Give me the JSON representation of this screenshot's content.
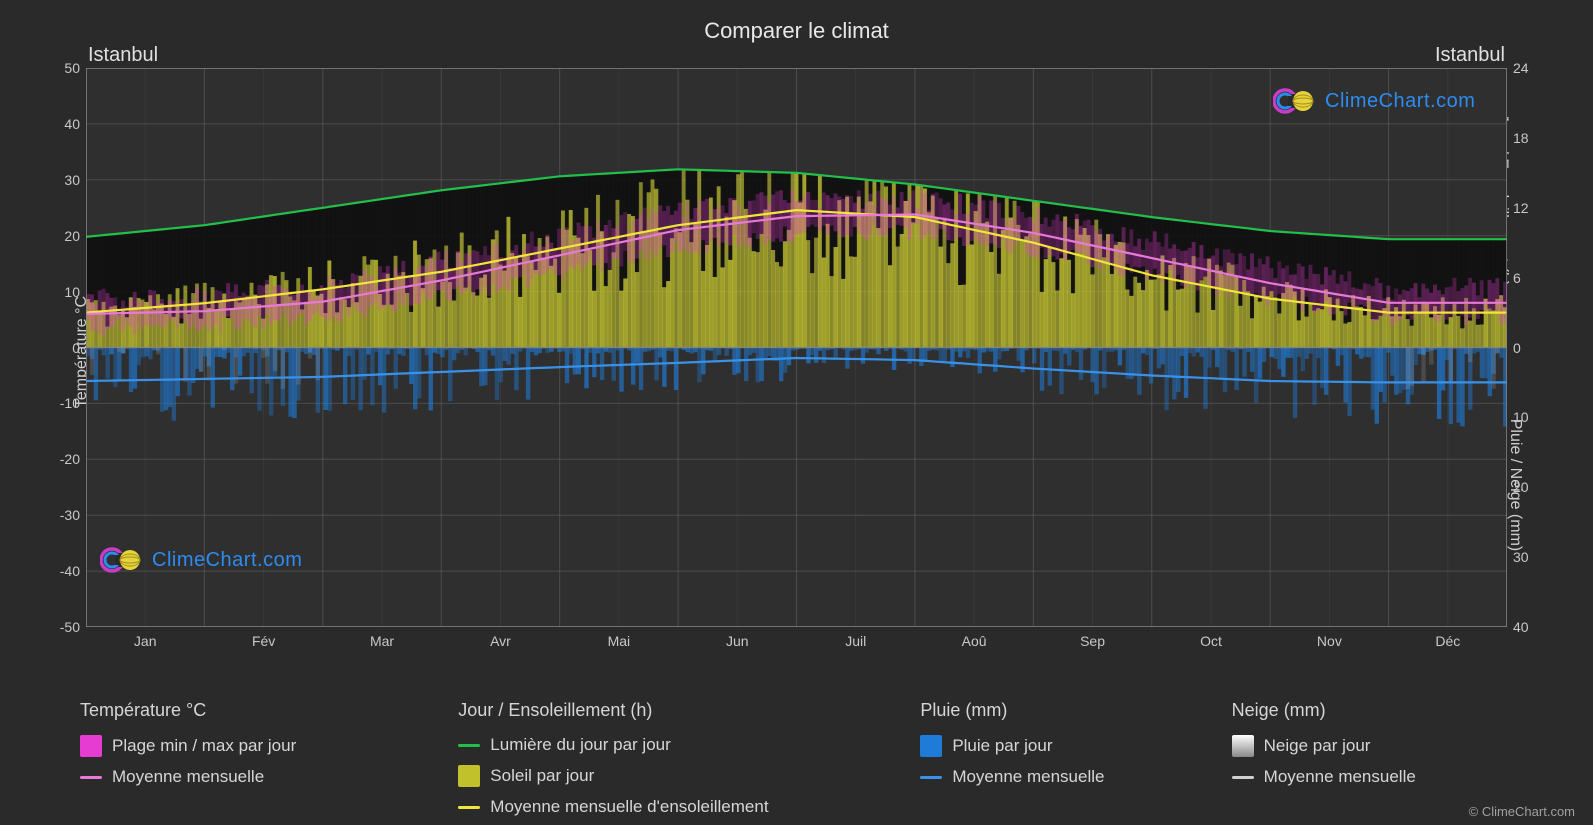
{
  "title": "Comparer le climat",
  "city_left": "Istanbul",
  "city_right": "Istanbul",
  "axis_left_label": "Température °C",
  "axis_right_top_label": "Jour / Ensoleillement (h)",
  "axis_right_bottom_label": "Pluie / Neige (mm)",
  "colors": {
    "background": "#2a2a2a",
    "plot_bg": "#2f2f2f",
    "grid": "#6a6a6a",
    "grid_minor": "#4a4a4a",
    "text": "#d8d8d8",
    "temp_range_fill": "#e63cd2",
    "temp_mean_line": "#e879d8",
    "daylight_line": "#22c04a",
    "sun_fill": "#c1c12c",
    "sun_mean_line": "#f0e63a",
    "rain_fill": "#1f7bd8",
    "rain_mean_line": "#3a92e8",
    "snow_fill": "#e6e6e6",
    "snow_mean_line": "#d0d0d0",
    "top_black_band": "#101010",
    "logo_brand": "#2d8cf0"
  },
  "left_axis": {
    "min": -50,
    "max": 50,
    "step": 10,
    "ticks": [
      50,
      40,
      30,
      20,
      10,
      0,
      -10,
      -20,
      -30,
      -40,
      -50
    ]
  },
  "right_axis_top": {
    "min": 0,
    "max": 24,
    "step": 6,
    "ticks": [
      24,
      18,
      12,
      6,
      0
    ]
  },
  "right_axis_bottom": {
    "min": 0,
    "max": 40,
    "step": 10,
    "ticks": [
      0,
      10,
      20,
      30,
      40
    ]
  },
  "months": [
    "Jan",
    "Fév",
    "Mar",
    "Avr",
    "Mai",
    "Jun",
    "Juil",
    "Aoû",
    "Sep",
    "Oct",
    "Nov",
    "Déc"
  ],
  "chart": {
    "type": "composite-climate",
    "daylight_hours": [
      9.5,
      10.5,
      12,
      13.5,
      14.7,
      15.3,
      15.0,
      14.0,
      12.6,
      11.2,
      10.0,
      9.3
    ],
    "sunshine_hours_mean": [
      3.0,
      3.8,
      5.0,
      6.5,
      8.5,
      10.5,
      11.8,
      11.2,
      9.0,
      6.2,
      4.2,
      3.0
    ],
    "temp_mean": [
      6.0,
      6.5,
      8.2,
      12.0,
      16.5,
      21.0,
      23.5,
      23.8,
      20.5,
      16.0,
      11.5,
      8.0
    ],
    "temp_min": [
      3.5,
      3.8,
      5.5,
      9.0,
      13.5,
      17.8,
      20.5,
      20.8,
      17.5,
      13.0,
      8.5,
      5.5
    ],
    "temp_max": [
      8.5,
      9.2,
      11.0,
      15.5,
      20.0,
      24.5,
      26.5,
      26.8,
      23.5,
      19.0,
      14.5,
      10.5
    ],
    "rain_mean_mm": [
      4.8,
      4.5,
      4.2,
      3.5,
      2.8,
      2.2,
      1.5,
      1.8,
      3.0,
      4.0,
      4.8,
      5.0
    ],
    "snow_present_months": [
      0,
      1,
      11
    ]
  },
  "legend": {
    "temp": {
      "heading": "Température °C",
      "range": "Plage min / max par jour",
      "mean": "Moyenne mensuelle"
    },
    "day": {
      "heading": "Jour / Ensoleillement (h)",
      "daylight": "Lumière du jour par jour",
      "sun": "Soleil par jour",
      "sun_mean": "Moyenne mensuelle d'ensoleillement"
    },
    "rain": {
      "heading": "Pluie (mm)",
      "daily": "Pluie par jour",
      "mean": "Moyenne mensuelle"
    },
    "snow": {
      "heading": "Neige (mm)",
      "daily": "Neige par jour",
      "mean": "Moyenne mensuelle"
    }
  },
  "logo_text": "ClimeChart.com",
  "copyright": "© ClimeChart.com"
}
